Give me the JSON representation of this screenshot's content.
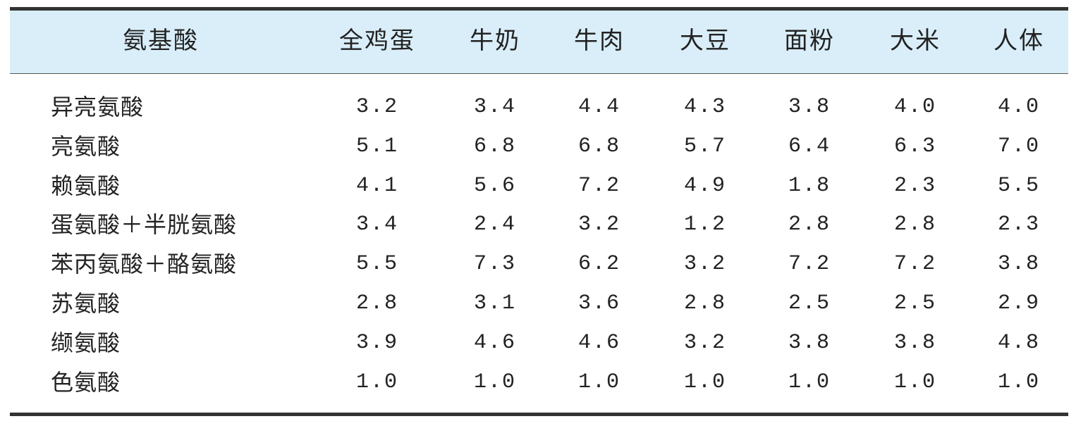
{
  "table": {
    "header": [
      "氨基酸",
      "全鸡蛋",
      "牛奶",
      "牛肉",
      "大豆",
      "面粉",
      "大米",
      "人体"
    ],
    "rows": [
      [
        "异亮氨酸",
        "3.2",
        "3.4",
        "4.4",
        "4.3",
        "3.8",
        "4.0",
        "4.0"
      ],
      [
        "亮氨酸",
        "5.1",
        "6.8",
        "6.8",
        "5.7",
        "6.4",
        "6.3",
        "7.0"
      ],
      [
        "赖氨酸",
        "4.1",
        "5.6",
        "7.2",
        "4.9",
        "1.8",
        "2.3",
        "5.5"
      ],
      [
        "蛋氨酸＋半胱氨酸",
        "3.4",
        "2.4",
        "3.2",
        "1.2",
        "2.8",
        "2.8",
        "2.3"
      ],
      [
        "苯丙氨酸＋酪氨酸",
        "5.5",
        "7.3",
        "6.2",
        "3.2",
        "7.2",
        "7.2",
        "3.8"
      ],
      [
        "苏氨酸",
        "2.8",
        "3.1",
        "3.6",
        "2.8",
        "2.5",
        "2.5",
        "2.9"
      ],
      [
        "缬氨酸",
        "3.9",
        "4.6",
        "4.6",
        "3.2",
        "3.8",
        "3.8",
        "4.8"
      ],
      [
        "色氨酸",
        "1.0",
        "1.0",
        "1.0",
        "1.0",
        "1.0",
        "1.0",
        "1.0"
      ]
    ]
  }
}
